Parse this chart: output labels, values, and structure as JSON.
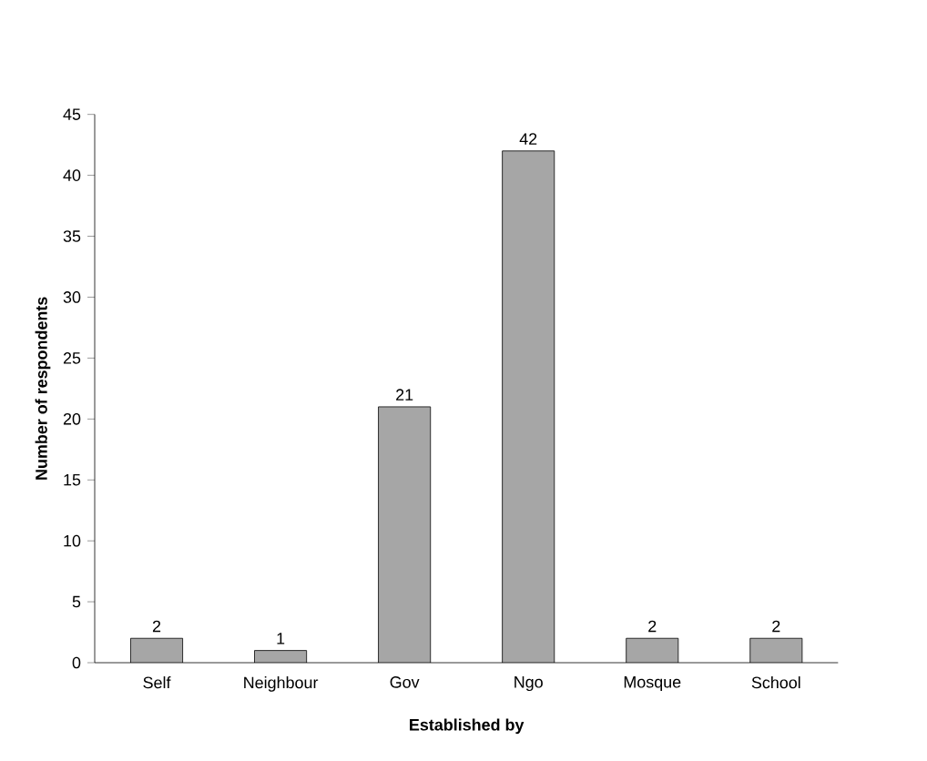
{
  "chart_data": {
    "type": "bar",
    "xlabel": "Established by",
    "ylabel": "Number of respondents",
    "categories": [
      "Self",
      "Neighbour",
      "Gov",
      "Ngo",
      "Mosque",
      "School"
    ],
    "values": [
      2,
      1,
      21,
      42,
      2,
      2
    ],
    "color": "#a6a6a6",
    "ylim": [
      0,
      45
    ],
    "yticks": [
      0,
      5,
      10,
      15,
      20,
      25,
      30,
      35,
      40,
      45
    ],
    "grid": false,
    "data_labels": true
  }
}
